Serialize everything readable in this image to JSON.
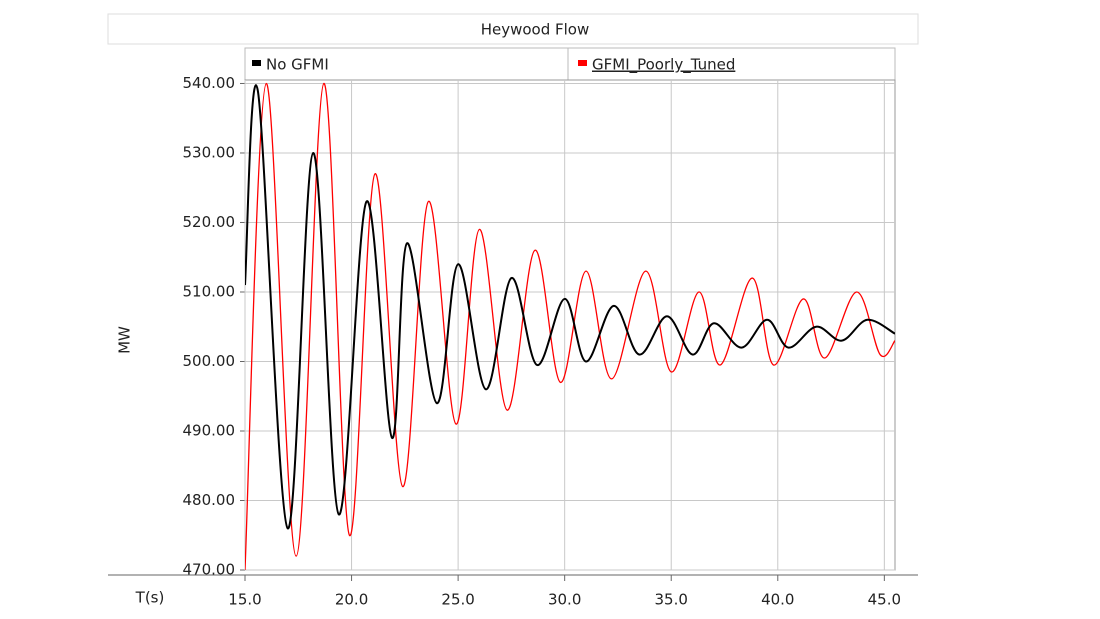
{
  "chart_data": {
    "type": "line",
    "title": "Heywood Flow",
    "xlabel": "T(s)",
    "ylabel": "MW",
    "xlim": [
      15,
      45.5
    ],
    "ylim": [
      470,
      540.5
    ],
    "xticks": [
      {
        "value": 15,
        "label": "15.0"
      },
      {
        "value": 20,
        "label": "20.0"
      },
      {
        "value": 25,
        "label": "25.0"
      },
      {
        "value": 30,
        "label": "30.0"
      },
      {
        "value": 35,
        "label": "35.0"
      },
      {
        "value": 40,
        "label": "40.0"
      },
      {
        "value": 45,
        "label": "45.0"
      }
    ],
    "yticks": [
      {
        "value": 470,
        "label": "470.00"
      },
      {
        "value": 480,
        "label": "480.00"
      },
      {
        "value": 490,
        "label": "490.00"
      },
      {
        "value": 500,
        "label": "500.00"
      },
      {
        "value": 510,
        "label": "510.00"
      },
      {
        "value": 520,
        "label": "520.00"
      },
      {
        "value": 530,
        "label": "530.00"
      },
      {
        "value": 540,
        "label": "540.00"
      }
    ],
    "grid": true,
    "series": [
      {
        "name": "No GFMI",
        "color": "#000000",
        "x": [
          15.0,
          15.6,
          17.0,
          18.2,
          19.4,
          20.7,
          21.9,
          22.6,
          24.0,
          25.0,
          26.3,
          27.5,
          28.7,
          30.0,
          31.0,
          32.3,
          33.5,
          34.8,
          36.0,
          37.0,
          38.3,
          39.5,
          40.5,
          41.8,
          43.0,
          44.2,
          45.5
        ],
        "values": [
          511,
          539,
          476,
          530,
          478,
          523,
          489,
          517,
          494,
          514,
          496,
          512,
          499.5,
          509,
          500,
          508,
          501,
          506.5,
          501,
          505.5,
          502,
          506,
          502,
          505,
          503,
          506,
          504
        ]
      },
      {
        "name": "GFMI_Poorly_Tuned",
        "color": "#ff0000",
        "x": [
          15.0,
          16.0,
          17.4,
          18.7,
          19.9,
          21.1,
          22.4,
          23.6,
          24.9,
          26.0,
          27.3,
          28.6,
          29.8,
          31.0,
          32.2,
          33.8,
          35.0,
          36.3,
          37.3,
          38.8,
          39.8,
          41.2,
          42.2,
          43.7,
          44.8,
          45.5
        ],
        "values": [
          470,
          540,
          472,
          540,
          475,
          527,
          482,
          523,
          491,
          519,
          493,
          516,
          497,
          513,
          497.5,
          513,
          498.5,
          510,
          499.5,
          512,
          499.5,
          509,
          500.5,
          510,
          501,
          503
        ]
      }
    ]
  }
}
